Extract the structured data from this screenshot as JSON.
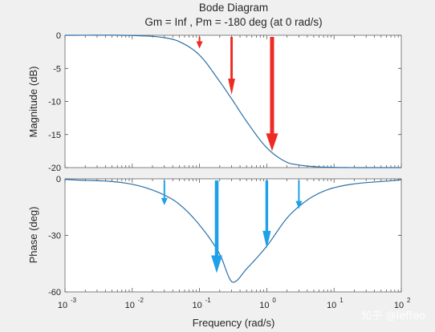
{
  "title": "Bode Diagram",
  "subtitle": "Gm = Inf ,  Pm = -180 deg (at 0 rad/s)",
  "watermark": "知乎 @leffeo",
  "colors": {
    "background": "#f0f0f0",
    "axes_bg": "#ffffff",
    "curve": "#2a6fa8",
    "grid": "#d8d8d8",
    "arrow_magnitude": "#ee2a24",
    "arrow_phase": "#1ea1e8"
  },
  "chart_data": [
    {
      "type": "line",
      "xlabel": "Frequency  (rad/s)",
      "ylabel": "Magnitude (dB)",
      "x_scale": "log",
      "xlim": [
        0.001,
        100
      ],
      "ylim": [
        -20,
        0
      ],
      "yticks": [
        "0",
        "-5",
        "-10",
        "-15",
        "-20"
      ],
      "grid": false,
      "series": [
        {
          "x": [
            0.001,
            0.01,
            0.03,
            0.05,
            0.1,
            0.2,
            0.3,
            0.5,
            1,
            2,
            3,
            5,
            10,
            100
          ],
          "y": [
            0.0,
            -0.04,
            -0.36,
            -0.96,
            -3.0,
            -7.0,
            -9.6,
            -13.0,
            -17.0,
            -19.2,
            -19.6,
            -19.85,
            -19.96,
            -20.0
          ]
        }
      ],
      "annotations": [
        {
          "type": "arrow",
          "x": 0.1,
          "y_from": 0,
          "y_to": -2
        },
        {
          "type": "arrow",
          "x": 0.3,
          "y_from": 0,
          "y_to": -9
        },
        {
          "type": "arrow",
          "x": 1.2,
          "y_from": 0,
          "y_to": -17.5
        }
      ]
    },
    {
      "type": "line",
      "xlabel": "Frequency  (rad/s)",
      "ylabel": "Phase (deg)",
      "x_scale": "log",
      "xlim": [
        0.001,
        100
      ],
      "ylim": [
        -60,
        0
      ],
      "yticks": [
        "0",
        "-30",
        "-60"
      ],
      "xticks": [
        {
          "base": "10",
          "exp": "-3"
        },
        {
          "base": "10",
          "exp": "-2"
        },
        {
          "base": "10",
          "exp": "-1"
        },
        {
          "base": "10",
          "exp": "0"
        },
        {
          "base": "10",
          "exp": "1"
        },
        {
          "base": "10",
          "exp": "2"
        }
      ],
      "grid": false,
      "series": [
        {
          "x": [
            0.001,
            0.01,
            0.03,
            0.05,
            0.1,
            0.2,
            0.316,
            0.5,
            1,
            2,
            3,
            5,
            10,
            100
          ],
          "y": [
            -0.3,
            -2.9,
            -8.6,
            -13.5,
            -24.5,
            -40,
            -54.9,
            -47.8,
            -35.7,
            -20.8,
            -14.7,
            -9.1,
            -4.7,
            -0.5
          ]
        }
      ],
      "annotations": [
        {
          "type": "arrow",
          "x": 0.03,
          "y_from": 0,
          "y_to": -14
        },
        {
          "type": "arrow",
          "x": 0.18,
          "y_from": 0,
          "y_to": -50
        },
        {
          "type": "arrow",
          "x": 1.0,
          "y_from": 0,
          "y_to": -37
        },
        {
          "type": "arrow",
          "x": 3.0,
          "y_from": 0,
          "y_to": -16
        }
      ]
    }
  ]
}
